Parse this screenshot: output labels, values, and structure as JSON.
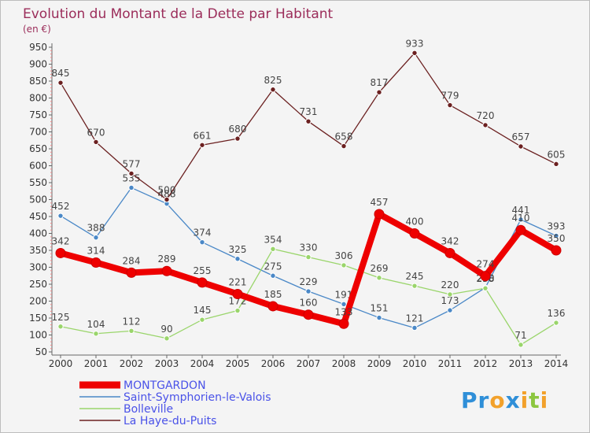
{
  "chart_data": {
    "type": "line",
    "title": "Evolution du Montant de la Dette par Habitant",
    "subtitle": "(en €)",
    "x": [
      "2000",
      "2001",
      "2002",
      "2003",
      "2004",
      "2005",
      "2006",
      "2007",
      "2008",
      "2009",
      "2010",
      "2011",
      "2012",
      "2013",
      "2014"
    ],
    "ylim": [
      50,
      950
    ],
    "yticks": [
      50,
      100,
      150,
      200,
      250,
      300,
      350,
      400,
      450,
      500,
      550,
      600,
      650,
      700,
      750,
      800,
      850,
      900,
      950
    ],
    "grid": false,
    "legend_position": "bottom-left",
    "series": [
      {
        "name": "MONTGARDON",
        "color": "#ee0000",
        "values": [
          342,
          314,
          284,
          289,
          255,
          221,
          185,
          160,
          133,
          457,
          400,
          342,
          274,
          410,
          350
        ],
        "labels": [
          "342",
          "314",
          "284",
          "289",
          "255",
          "221",
          "185",
          "160",
          "133",
          "457",
          "400",
          "342",
          "274",
          "410",
          "350"
        ]
      },
      {
        "name": "Saint-Symphorien-le-Valois",
        "color": "#4a88c7",
        "values": [
          452,
          388,
          535,
          488,
          374,
          325,
          275,
          229,
          191,
          151,
          121,
          173,
          240,
          441,
          393
        ],
        "labels": [
          "452",
          "388",
          "535",
          "488",
          "374",
          "325",
          "275",
          "229",
          "191",
          "151",
          "121",
          "173",
          "240",
          "441",
          "393"
        ]
      },
      {
        "name": "Bolleville",
        "color": "#9ad56b",
        "values": [
          125,
          104,
          112,
          90,
          145,
          172,
          354,
          330,
          306,
          269,
          245,
          220,
          238,
          71,
          136
        ],
        "labels": [
          "125",
          "104",
          "112",
          "90",
          "145",
          "172",
          "354",
          "330",
          "306",
          "269",
          "245",
          "220",
          "238",
          "71",
          "136"
        ]
      },
      {
        "name": "La Haye-du-Puits",
        "color": "#6b2020",
        "values": [
          845,
          670,
          577,
          500,
          661,
          680,
          825,
          731,
          658,
          817,
          933,
          779,
          720,
          657,
          605
        ],
        "labels": [
          "845",
          "670",
          "577",
          "500",
          "661",
          "680",
          "825",
          "731",
          "658",
          "817",
          "933",
          "779",
          "720",
          "657",
          "605"
        ]
      }
    ]
  },
  "logo": {
    "text": "Proxiti"
  }
}
